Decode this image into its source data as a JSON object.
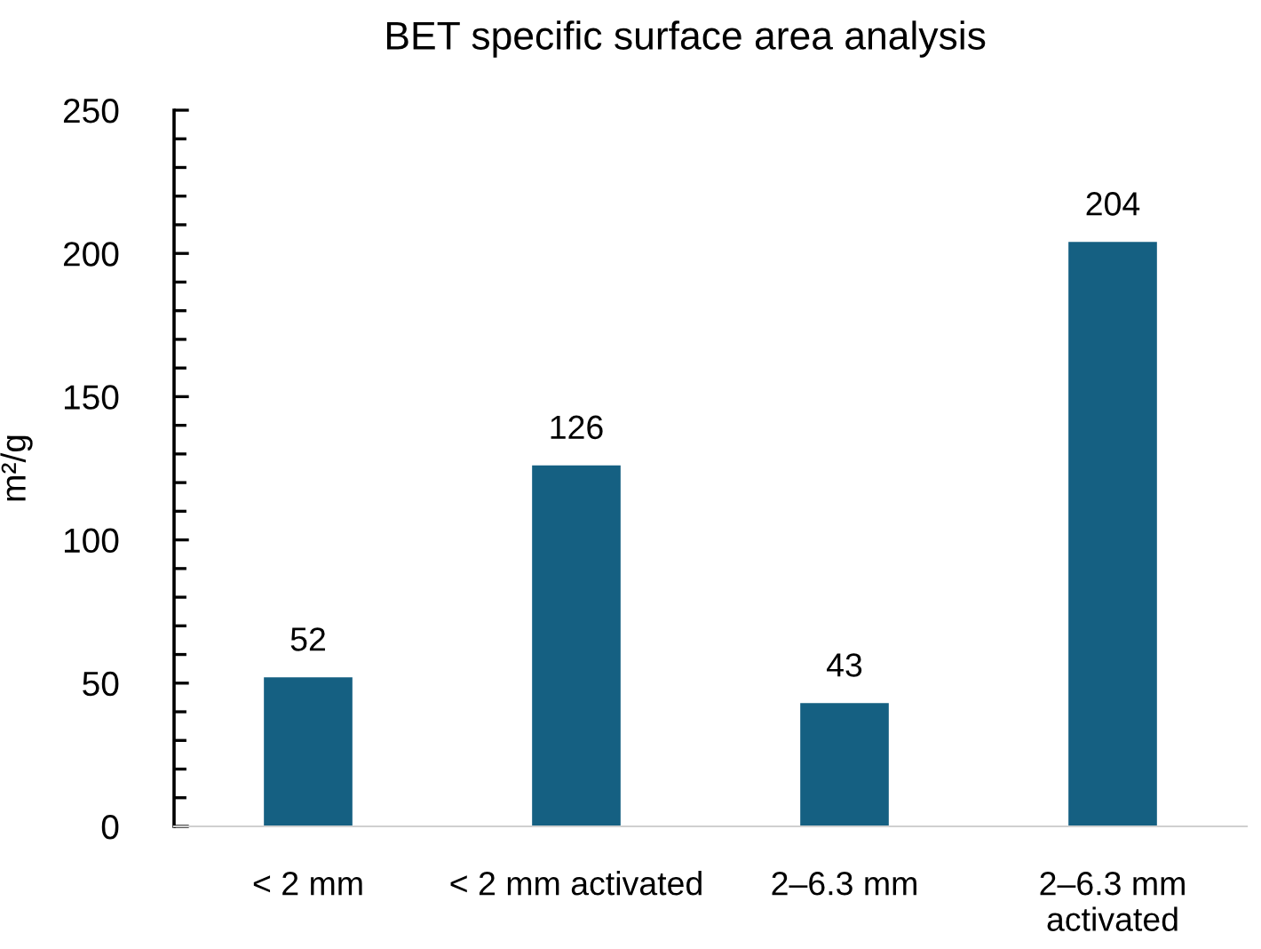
{
  "chart_data": {
    "type": "bar",
    "title": "BET specific surface area analysis",
    "ylabel": "m²/g",
    "categories": [
      "< 2 mm",
      "< 2 mm activated",
      "2–6.3 mm",
      "2–6.3 mm\nactivated"
    ],
    "values": [
      52,
      126,
      43,
      204
    ],
    "color": "#156082",
    "ylim": [
      0,
      250
    ],
    "yticks": [
      0,
      {
        "value": 10,
        "label": null
      },
      {
        "value": 20,
        "label": null
      },
      {
        "value": 30,
        "label": null
      },
      {
        "value": 40,
        "label": null
      },
      50,
      {
        "value": 60,
        "label": null
      },
      {
        "value": 70,
        "label": null
      },
      {
        "value": 80,
        "label": null
      },
      {
        "value": 90,
        "label": null
      },
      100,
      {
        "value": 110,
        "label": null
      },
      {
        "value": 120,
        "label": null
      },
      {
        "value": 130,
        "label": null
      },
      {
        "value": 140,
        "label": null
      },
      150,
      {
        "value": 160,
        "label": null
      },
      {
        "value": 170,
        "label": null
      },
      {
        "value": 180,
        "label": null
      },
      {
        "value": 190,
        "label": null
      },
      200,
      {
        "value": 210,
        "label": null
      },
      {
        "value": 220,
        "label": null
      },
      {
        "value": 230,
        "label": null
      },
      {
        "value": 240,
        "label": null
      },
      250
    ],
    "data_labels": true,
    "grid": false,
    "legend": false
  }
}
